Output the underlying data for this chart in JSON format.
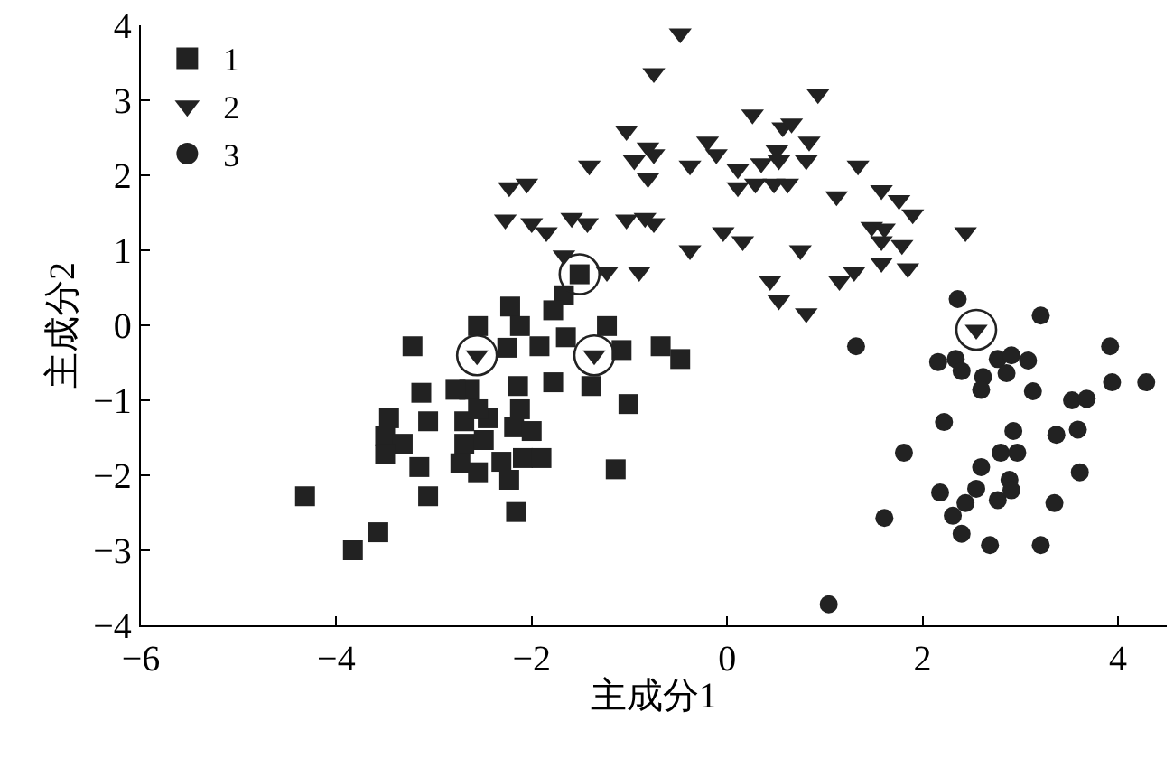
{
  "chart_data": {
    "type": "scatter",
    "xlabel": "主成分1",
    "ylabel": "主成分2",
    "xlim": [
      -6,
      4.5
    ],
    "xticks": [
      -6,
      -4,
      -2,
      0,
      2,
      4
    ],
    "ylim": [
      -4,
      4
    ],
    "yticks": [
      -4,
      -3,
      -2,
      -1,
      0,
      1,
      2,
      3,
      4
    ],
    "legend": "top left",
    "series": [
      {
        "name": "1",
        "color": "#222222",
        "marker": "square",
        "x": [
          -1.51,
          -1.67,
          -2.22,
          -1.78,
          -2.55,
          -2.12,
          -3.22,
          -2.25,
          -1.92,
          -1.65,
          -1.23,
          -1.08,
          -0.68,
          -0.48,
          -2.64,
          -2.14,
          -1.78,
          -1.39,
          -3.13,
          -1.01,
          -2.12,
          -3.46,
          -3.06,
          -2.69,
          -2.45,
          -2.18,
          -2.0,
          -3.5,
          -3.32,
          -2.69,
          -2.49,
          -3.5,
          -3.15,
          -2.73,
          -2.55,
          -2.31,
          -2.09,
          -1.9,
          -2.23,
          -1.14,
          -4.32,
          -3.06,
          -2.16,
          -3.57,
          -3.83,
          -2.55,
          -2.78
        ],
        "values": [
          0.68,
          0.4,
          0.25,
          0.2,
          -0.01,
          -0.01,
          -0.28,
          -0.3,
          -0.28,
          -0.16,
          -0.01,
          -0.33,
          -0.28,
          -0.45,
          -0.86,
          -0.81,
          -0.76,
          -0.81,
          -0.9,
          -1.05,
          -1.12,
          -1.24,
          -1.28,
          -1.28,
          -1.24,
          -1.36,
          -1.41,
          -1.48,
          -1.58,
          -1.58,
          -1.53,
          -1.72,
          -1.89,
          -1.84,
          -1.96,
          -1.82,
          -1.77,
          -1.77,
          -2.06,
          -1.92,
          -2.28,
          -2.28,
          -2.49,
          -2.76,
          -3.0,
          -1.12,
          -0.86
        ]
      },
      {
        "name": "2",
        "color": "#222222",
        "marker": "triangle",
        "x": [
          -0.48,
          -0.75,
          0.93,
          0.26,
          -1.03,
          0.57,
          0.66,
          -0.81,
          -0.2,
          0.84,
          -0.95,
          -0.75,
          -0.11,
          0.51,
          0.53,
          -1.41,
          -0.38,
          0.35,
          0.81,
          1.34,
          -0.81,
          0.11,
          0.11,
          0.29,
          0.48,
          0.62,
          -2.23,
          -2.05,
          1.12,
          1.58,
          1.76,
          1.9,
          -2.27,
          -2.0,
          -1.85,
          -1.59,
          -1.43,
          -1.03,
          -0.84,
          -0.75,
          -0.04,
          0.16,
          -0.38,
          0.75,
          1.48,
          1.61,
          1.58,
          1.79,
          2.44,
          -1.67,
          -1.23,
          -0.9,
          1.58,
          1.85,
          1.15,
          1.3,
          0.44,
          0.53,
          0.81,
          -2.56,
          -1.36,
          2.55
        ],
        "values": [
          3.89,
          3.36,
          3.08,
          2.81,
          2.59,
          2.64,
          2.69,
          2.37,
          2.45,
          2.45,
          2.2,
          2.28,
          2.28,
          2.33,
          2.2,
          2.13,
          2.13,
          2.16,
          2.2,
          2.13,
          1.96,
          2.08,
          1.84,
          1.89,
          1.89,
          1.89,
          1.84,
          1.89,
          1.72,
          1.8,
          1.67,
          1.48,
          1.41,
          1.36,
          1.24,
          1.43,
          1.36,
          1.41,
          1.43,
          1.36,
          1.24,
          1.12,
          1.0,
          1.0,
          1.31,
          1.29,
          1.12,
          1.07,
          1.24,
          0.93,
          0.71,
          0.71,
          0.83,
          0.76,
          0.59,
          0.71,
          0.59,
          0.33,
          0.16,
          -0.4,
          -0.4,
          -0.06
        ]
      },
      {
        "name": "3",
        "color": "#222222",
        "marker": "circle",
        "x": [
          2.36,
          3.21,
          1.32,
          3.92,
          2.16,
          2.34,
          2.4,
          2.62,
          2.77,
          2.91,
          3.08,
          2.86,
          2.6,
          3.13,
          3.94,
          4.29,
          3.53,
          3.68,
          2.22,
          2.93,
          3.37,
          3.59,
          1.81,
          2.8,
          2.97,
          2.6,
          3.61,
          2.89,
          2.18,
          2.55,
          2.77,
          2.91,
          2.44,
          2.31,
          3.35,
          1.61,
          2.4,
          2.69,
          3.21,
          1.04
        ],
        "values": [
          0.35,
          0.13,
          -0.28,
          -0.28,
          -0.49,
          -0.45,
          -0.61,
          -0.69,
          -0.45,
          -0.4,
          -0.47,
          -0.64,
          -0.86,
          -0.88,
          -0.76,
          -0.76,
          -1.0,
          -0.98,
          -1.29,
          -1.41,
          -1.46,
          -1.39,
          -1.7,
          -1.7,
          -1.7,
          -1.89,
          -1.96,
          -2.06,
          -2.23,
          -2.18,
          -2.33,
          -2.2,
          -2.37,
          -2.54,
          -2.37,
          -2.57,
          -2.78,
          -2.93,
          -2.93,
          -3.72
        ]
      },
      {
        "color": "#222222",
        "marker": "circle-open",
        "x": [
          -1.51,
          -2.56,
          -1.36,
          2.55
        ],
        "values": [
          0.68,
          -0.4,
          -0.4,
          -0.06
        ]
      }
    ]
  }
}
